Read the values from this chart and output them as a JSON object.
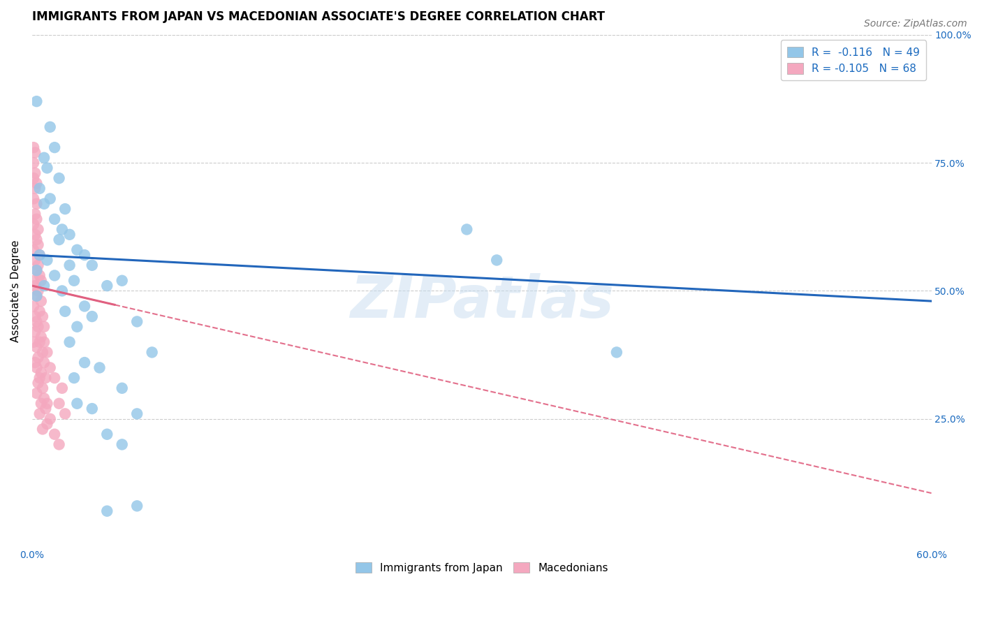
{
  "title": "IMMIGRANTS FROM JAPAN VS MACEDONIAN ASSOCIATE'S DEGREE CORRELATION CHART",
  "source": "Source: ZipAtlas.com",
  "xlabel": "Immigrants from Japan",
  "ylabel": "Associate's Degree",
  "xlim": [
    0.0,
    0.6
  ],
  "ylim": [
    0.0,
    1.0
  ],
  "legend_r_blue": "-0.116",
  "legend_n_blue": "49",
  "legend_r_pink": "-0.105",
  "legend_n_pink": "68",
  "legend_label_blue": "Immigrants from Japan",
  "legend_label_pink": "Macedonians",
  "blue_color": "#93c6e8",
  "pink_color": "#f4a8bf",
  "blue_line_color": "#2266bb",
  "pink_line_color": "#e06080",
  "blue_scatter": [
    [
      0.003,
      0.87
    ],
    [
      0.012,
      0.82
    ],
    [
      0.015,
      0.78
    ],
    [
      0.008,
      0.76
    ],
    [
      0.01,
      0.74
    ],
    [
      0.018,
      0.72
    ],
    [
      0.005,
      0.7
    ],
    [
      0.012,
      0.68
    ],
    [
      0.008,
      0.67
    ],
    [
      0.022,
      0.66
    ],
    [
      0.015,
      0.64
    ],
    [
      0.02,
      0.62
    ],
    [
      0.025,
      0.61
    ],
    [
      0.018,
      0.6
    ],
    [
      0.03,
      0.58
    ],
    [
      0.005,
      0.57
    ],
    [
      0.035,
      0.57
    ],
    [
      0.01,
      0.56
    ],
    [
      0.025,
      0.55
    ],
    [
      0.04,
      0.55
    ],
    [
      0.003,
      0.54
    ],
    [
      0.015,
      0.53
    ],
    [
      0.028,
      0.52
    ],
    [
      0.008,
      0.51
    ],
    [
      0.05,
      0.51
    ],
    [
      0.02,
      0.5
    ],
    [
      0.003,
      0.49
    ],
    [
      0.06,
      0.52
    ],
    [
      0.035,
      0.47
    ],
    [
      0.022,
      0.46
    ],
    [
      0.04,
      0.45
    ],
    [
      0.07,
      0.44
    ],
    [
      0.03,
      0.43
    ],
    [
      0.025,
      0.4
    ],
    [
      0.08,
      0.38
    ],
    [
      0.035,
      0.36
    ],
    [
      0.045,
      0.35
    ],
    [
      0.028,
      0.33
    ],
    [
      0.06,
      0.31
    ],
    [
      0.03,
      0.28
    ],
    [
      0.04,
      0.27
    ],
    [
      0.07,
      0.26
    ],
    [
      0.05,
      0.22
    ],
    [
      0.06,
      0.2
    ],
    [
      0.07,
      0.08
    ],
    [
      0.29,
      0.62
    ],
    [
      0.31,
      0.56
    ],
    [
      0.39,
      0.38
    ],
    [
      0.05,
      0.07
    ]
  ],
  "pink_scatter": [
    [
      0.001,
      0.78
    ],
    [
      0.002,
      0.77
    ],
    [
      0.001,
      0.75
    ],
    [
      0.002,
      0.73
    ],
    [
      0.001,
      0.72
    ],
    [
      0.003,
      0.71
    ],
    [
      0.002,
      0.7
    ],
    [
      0.001,
      0.68
    ],
    [
      0.003,
      0.67
    ],
    [
      0.002,
      0.65
    ],
    [
      0.003,
      0.64
    ],
    [
      0.001,
      0.63
    ],
    [
      0.004,
      0.62
    ],
    [
      0.002,
      0.61
    ],
    [
      0.003,
      0.6
    ],
    [
      0.004,
      0.59
    ],
    [
      0.001,
      0.58
    ],
    [
      0.005,
      0.57
    ],
    [
      0.002,
      0.56
    ],
    [
      0.004,
      0.55
    ],
    [
      0.003,
      0.54
    ],
    [
      0.005,
      0.53
    ],
    [
      0.001,
      0.52
    ],
    [
      0.006,
      0.52
    ],
    [
      0.002,
      0.51
    ],
    [
      0.004,
      0.5
    ],
    [
      0.003,
      0.49
    ],
    [
      0.006,
      0.48
    ],
    [
      0.001,
      0.47
    ],
    [
      0.005,
      0.46
    ],
    [
      0.002,
      0.45
    ],
    [
      0.007,
      0.45
    ],
    [
      0.003,
      0.44
    ],
    [
      0.004,
      0.43
    ],
    [
      0.008,
      0.43
    ],
    [
      0.002,
      0.42
    ],
    [
      0.006,
      0.41
    ],
    [
      0.001,
      0.4
    ],
    [
      0.005,
      0.4
    ],
    [
      0.003,
      0.39
    ],
    [
      0.007,
      0.38
    ],
    [
      0.004,
      0.37
    ],
    [
      0.002,
      0.36
    ],
    [
      0.008,
      0.36
    ],
    [
      0.003,
      0.35
    ],
    [
      0.006,
      0.34
    ],
    [
      0.005,
      0.33
    ],
    [
      0.009,
      0.33
    ],
    [
      0.004,
      0.32
    ],
    [
      0.007,
      0.31
    ],
    [
      0.003,
      0.3
    ],
    [
      0.008,
      0.29
    ],
    [
      0.01,
      0.28
    ],
    [
      0.006,
      0.28
    ],
    [
      0.009,
      0.27
    ],
    [
      0.005,
      0.26
    ],
    [
      0.012,
      0.25
    ],
    [
      0.01,
      0.24
    ],
    [
      0.007,
      0.23
    ],
    [
      0.015,
      0.22
    ],
    [
      0.018,
      0.2
    ],
    [
      0.008,
      0.4
    ],
    [
      0.01,
      0.38
    ],
    [
      0.012,
      0.35
    ],
    [
      0.015,
      0.33
    ],
    [
      0.02,
      0.31
    ],
    [
      0.018,
      0.28
    ],
    [
      0.022,
      0.26
    ]
  ],
  "blue_line_x": [
    0.0,
    0.6
  ],
  "blue_line_y": [
    0.57,
    0.48
  ],
  "pink_line_x": [
    0.0,
    0.6
  ],
  "pink_line_y": [
    0.51,
    0.105
  ],
  "pink_line_solid_end_x": 0.055,
  "watermark": "ZIPatlas",
  "background_color": "#ffffff",
  "grid_color": "#cccccc",
  "title_fontsize": 12,
  "axis_label_fontsize": 11,
  "tick_fontsize": 10,
  "legend_fontsize": 11,
  "source_fontsize": 10
}
